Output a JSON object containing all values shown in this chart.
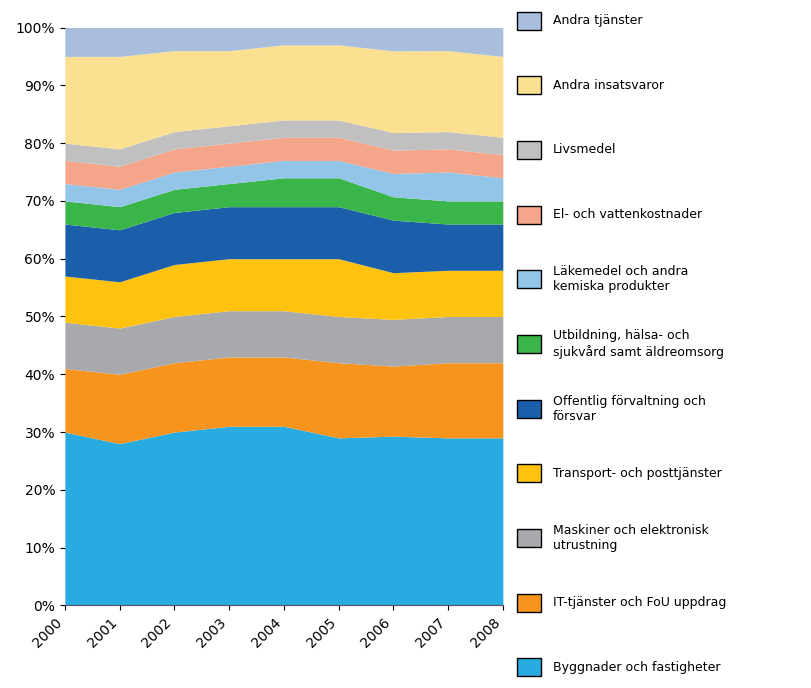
{
  "years": [
    2000,
    2001,
    2002,
    2003,
    2004,
    2005,
    2006,
    2007,
    2008
  ],
  "series": [
    {
      "label": "Byggnader och fastigheter",
      "color": "#29ABE2",
      "values": [
        30,
        28,
        30,
        31,
        31,
        29,
        29,
        29,
        29
      ]
    },
    {
      "label": "IT-tjänster och FoU uppdrag",
      "color": "#F7941D",
      "values": [
        11,
        12,
        12,
        12,
        12,
        13,
        12,
        13,
        13
      ]
    },
    {
      "label": "Maskiner och elektronisk\nutrustning",
      "color": "#A7A9AC",
      "values": [
        8,
        8,
        8,
        8,
        8,
        8,
        8,
        8,
        8
      ]
    },
    {
      "label": "Transport- och posttjänster",
      "color": "#FFC20E",
      "values": [
        8,
        8,
        9,
        9,
        9,
        10,
        8,
        8,
        8
      ]
    },
    {
      "label": "Offentlig förvaltning och\nförsvar",
      "color": "#1B5FAA",
      "values": [
        9,
        9,
        9,
        9,
        9,
        9,
        9,
        8,
        8
      ]
    },
    {
      "label": "Utbildning, hälsa- och\nsjukvård samt äldreomsorg",
      "color": "#39B54A",
      "values": [
        4,
        4,
        4,
        4,
        5,
        5,
        4,
        4,
        4
      ]
    },
    {
      "label": "Läkemedel och andra\nkemiska produkter",
      "color": "#92C5E8",
      "values": [
        3,
        3,
        3,
        3,
        3,
        3,
        4,
        5,
        4
      ]
    },
    {
      "label": "El- och vattenkostnader",
      "color": "#F4A58A",
      "values": [
        4,
        4,
        4,
        4,
        4,
        4,
        4,
        4,
        4
      ]
    },
    {
      "label": "Livsmedel",
      "color": "#C0C0C0",
      "values": [
        3,
        3,
        3,
        3,
        3,
        3,
        3,
        3,
        3
      ]
    },
    {
      "label": "Andra insatsvaror",
      "color": "#FAE090",
      "values": [
        15,
        16,
        14,
        13,
        13,
        13,
        14,
        14,
        14
      ]
    },
    {
      "label": "Andra tjänster",
      "color": "#A9BEDD",
      "values": [
        5,
        5,
        4,
        4,
        3,
        3,
        4,
        4,
        5
      ]
    }
  ],
  "ytick_labels": [
    "0%",
    "10%",
    "20%",
    "30%",
    "40%",
    "50%",
    "60%",
    "70%",
    "80%",
    "90%",
    "100%"
  ],
  "background_color": "#ffffff",
  "figsize": [
    8.11,
    6.88
  ],
  "dpi": 100
}
